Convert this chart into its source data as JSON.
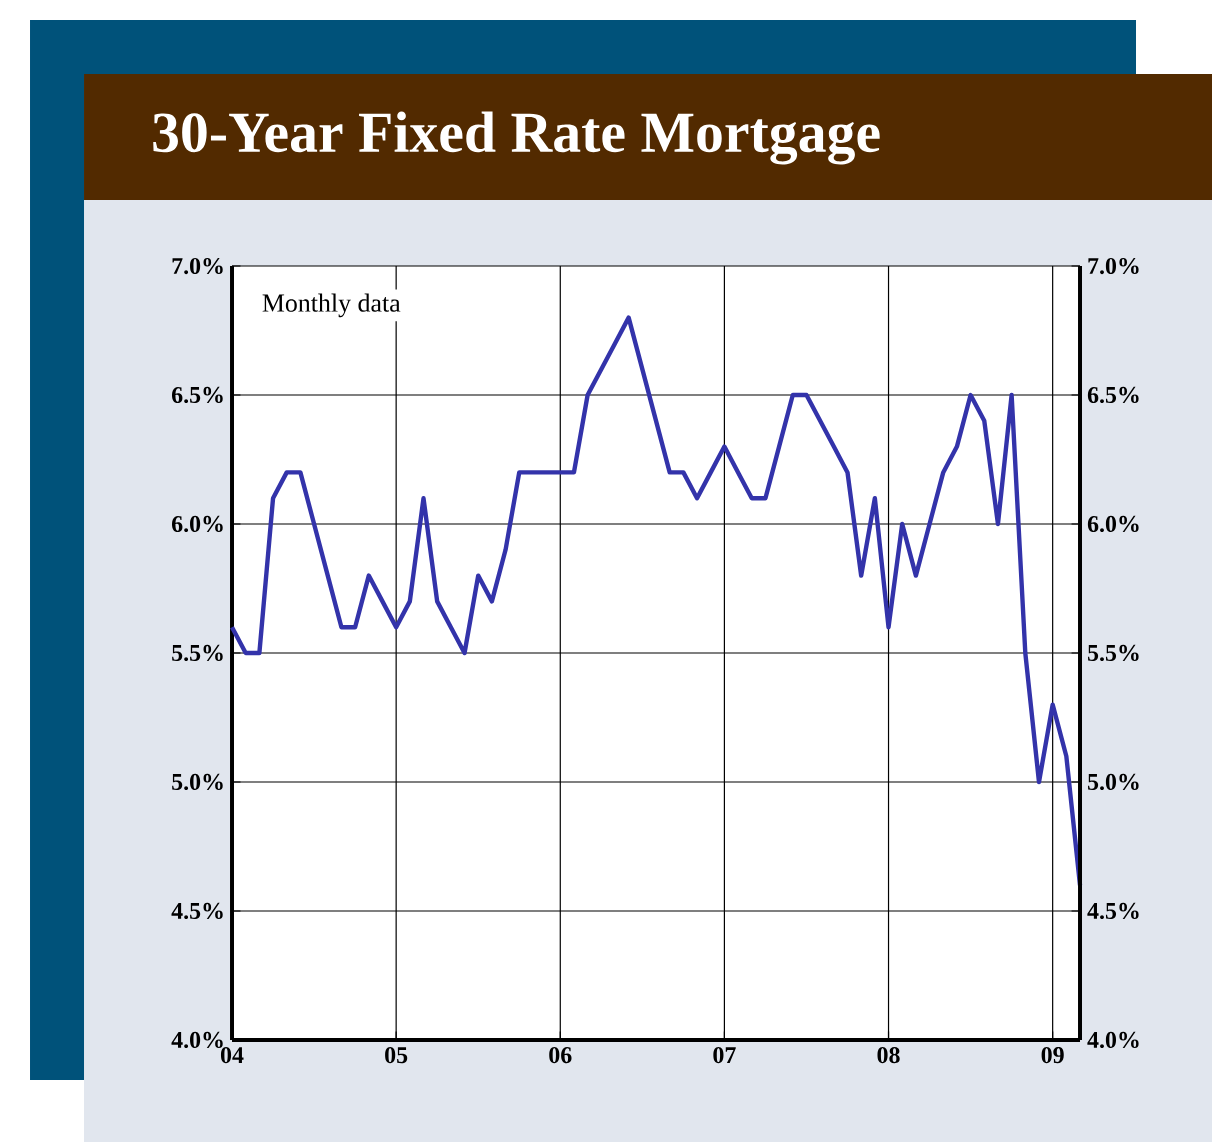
{
  "chart_data": {
    "type": "line",
    "title": "30-Year Fixed Rate Mortgage",
    "annotations": [
      "Monthly data"
    ],
    "x": [
      "2004-01",
      "2004-02",
      "2004-03",
      "2004-04",
      "2004-05",
      "2004-06",
      "2004-07",
      "2004-08",
      "2004-09",
      "2004-10",
      "2004-11",
      "2004-12",
      "2005-01",
      "2005-02",
      "2005-03",
      "2005-04",
      "2005-05",
      "2005-06",
      "2005-07",
      "2005-08",
      "2005-09",
      "2005-10",
      "2005-11",
      "2005-12",
      "2006-01",
      "2006-02",
      "2006-03",
      "2006-04",
      "2006-05",
      "2006-06",
      "2006-07",
      "2006-08",
      "2006-09",
      "2006-10",
      "2006-11",
      "2006-12",
      "2007-01",
      "2007-02",
      "2007-03",
      "2007-04",
      "2007-05",
      "2007-06",
      "2007-07",
      "2007-08",
      "2007-09",
      "2007-10",
      "2007-11",
      "2007-12",
      "2008-01",
      "2008-02",
      "2008-03",
      "2008-04",
      "2008-05",
      "2008-06",
      "2008-07",
      "2008-08",
      "2008-09",
      "2008-10",
      "2008-11",
      "2008-12",
      "2009-01",
      "2009-02",
      "2009-03"
    ],
    "series": [
      {
        "color": "#3333aa",
        "values": [
          5.6,
          5.5,
          5.5,
          6.1,
          6.2,
          6.2,
          6.0,
          5.8,
          5.6,
          5.6,
          5.8,
          5.7,
          5.6,
          5.7,
          6.1,
          5.7,
          5.6,
          5.5,
          5.8,
          5.7,
          5.9,
          6.2,
          6.2,
          6.2,
          6.2,
          6.2,
          6.5,
          6.6,
          6.7,
          6.8,
          6.6,
          6.4,
          6.2,
          6.2,
          6.1,
          6.2,
          6.3,
          6.2,
          6.1,
          6.1,
          6.3,
          6.5,
          6.5,
          6.4,
          6.3,
          6.2,
          5.8,
          6.1,
          5.6,
          6.0,
          5.8,
          6.0,
          6.2,
          6.3,
          6.5,
          6.4,
          6.0,
          6.5,
          5.5,
          5.0,
          5.3,
          5.1,
          4.6
        ]
      }
    ],
    "xlim": [
      "2004-01",
      "2009-03"
    ],
    "xticks": [
      {
        "value": "2004-01",
        "label": "04"
      },
      {
        "value": "2005-01",
        "label": "05"
      },
      {
        "value": "2006-01",
        "label": "06"
      },
      {
        "value": "2007-01",
        "label": "07"
      },
      {
        "value": "2008-01",
        "label": "08"
      },
      {
        "value": "2009-01",
        "label": "09"
      }
    ],
    "ylim": [
      4.0,
      7.0
    ],
    "yticks": [
      {
        "value": 4.0,
        "label": "4.0%"
      },
      {
        "value": 4.5,
        "label": "4.5%"
      },
      {
        "value": 5.0,
        "label": "5.0%"
      },
      {
        "value": 5.5,
        "label": "5.5%"
      },
      {
        "value": 6.0,
        "label": "6.0%"
      },
      {
        "value": 6.5,
        "label": "6.5%"
      },
      {
        "value": 7.0,
        "label": "7.0%"
      }
    ],
    "y2lim": [
      4.0,
      7.0
    ],
    "y2ticks": [
      {
        "value": 4.0,
        "label": "4.0%"
      },
      {
        "value": 4.5,
        "label": "4.5%"
      },
      {
        "value": 5.0,
        "label": "5.0%"
      },
      {
        "value": 5.5,
        "label": "5.5%"
      },
      {
        "value": 6.0,
        "label": "6.0%"
      },
      {
        "value": 6.5,
        "label": "6.5%"
      },
      {
        "value": 7.0,
        "label": "7.0%"
      }
    ],
    "grid": true
  }
}
